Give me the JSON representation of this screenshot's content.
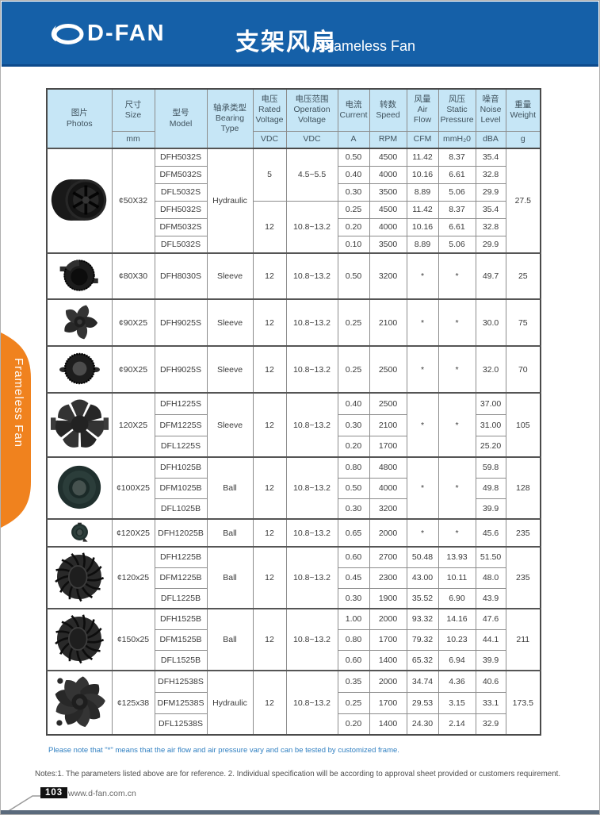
{
  "header_bar": {
    "logo": "D-FAN",
    "title_cn": "支架风扇",
    "title_en": "Frameless Fan"
  },
  "side_tab": {
    "label": "Frameless Fan"
  },
  "colors": {
    "banner_blue": "#1560a8",
    "banner_edge": "#0d4a8c",
    "header_cell_blue": "#c6e6f6",
    "tab_orange": "#f0821e",
    "note_blue": "#2f7fc1"
  },
  "table": {
    "headers": {
      "photos": {
        "cn": "图片",
        "en": "Photos"
      },
      "size": {
        "cn": "尺寸",
        "en": "Size",
        "unit": "mm"
      },
      "model": {
        "cn": "型号",
        "en": "Model"
      },
      "bearing": {
        "cn": "轴承类型",
        "en": "Bearing Type"
      },
      "voltage": {
        "cn": "电压",
        "en": "Rated Voltage",
        "unit": "VDC"
      },
      "op_voltage": {
        "cn": "电压范围",
        "en": "Operation Voltage",
        "unit": "VDC"
      },
      "current": {
        "cn": "电流",
        "en": "Current",
        "unit": "A"
      },
      "speed": {
        "cn": "转数",
        "en": "Speed",
        "unit": "RPM"
      },
      "air_flow": {
        "cn": "风量",
        "en": "Air Flow",
        "unit": "CFM"
      },
      "pressure": {
        "cn": "风压",
        "en": "Static Pressure",
        "unit": "mmH₂0"
      },
      "noise": {
        "cn": "噪音",
        "en": "Noise Level",
        "unit": "dBA"
      },
      "weight": {
        "cn": "重量",
        "en": "Weight",
        "unit": "g"
      }
    },
    "blocks": [
      {
        "photo": "cylinder-impeller-fan",
        "size": "¢50X32",
        "bearing": "Hydraulic",
        "weight": "27.5",
        "groups": [
          {
            "voltage": "5",
            "op_voltage": "4.5~5.5",
            "rows": [
              {
                "model": "DFH5032S",
                "current": "0.50",
                "speed": "4500",
                "air": "11.42",
                "pressure": "8.37",
                "noise": "35.4"
              },
              {
                "model": "DFM5032S",
                "current": "0.40",
                "speed": "4000",
                "air": "10.16",
                "pressure": "6.61",
                "noise": "32.8"
              },
              {
                "model": "DFL5032S",
                "current": "0.30",
                "speed": "3500",
                "air": "8.89",
                "pressure": "5.06",
                "noise": "29.9"
              }
            ]
          },
          {
            "voltage": "12",
            "op_voltage": "10.8~13.2",
            "rows": [
              {
                "model": "DFH5032S",
                "current": "0.25",
                "speed": "4500",
                "air": "11.42",
                "pressure": "8.37",
                "noise": "35.4"
              },
              {
                "model": "DFM5032S",
                "current": "0.20",
                "speed": "4000",
                "air": "10.16",
                "pressure": "6.61",
                "noise": "32.8"
              },
              {
                "model": "DFL5032S",
                "current": "0.10",
                "speed": "3500",
                "air": "8.89",
                "pressure": "5.06",
                "noise": "29.9"
              }
            ]
          }
        ]
      },
      {
        "photo": "round-blower-fan",
        "size": "¢80X30",
        "bearing": "Sleeve",
        "weight": "25",
        "groups": [
          {
            "voltage": "12",
            "op_voltage": "10.8~13.2",
            "rows": [
              {
                "model": "DFH8030S",
                "current": "0.50",
                "speed": "3200",
                "air": "*",
                "pressure": "*",
                "noise": "49.7"
              }
            ]
          }
        ]
      },
      {
        "photo": "swirl-blade-fan",
        "size": "¢90X25",
        "bearing": "Sleeve",
        "weight": "75",
        "groups": [
          {
            "voltage": "12",
            "op_voltage": "10.8~13.2",
            "rows": [
              {
                "model": "DFH9025S",
                "current": "0.25",
                "speed": "2100",
                "air": "*",
                "pressure": "*",
                "noise": "30.0"
              }
            ]
          }
        ]
      },
      {
        "photo": "serrated-round-fan",
        "size": "¢90X25",
        "bearing": "Sleeve",
        "weight": "70",
        "groups": [
          {
            "voltage": "12",
            "op_voltage": "10.8~13.2",
            "rows": [
              {
                "model": "DFH9025S",
                "current": "0.25",
                "speed": "2500",
                "air": "*",
                "pressure": "*",
                "noise": "32.0"
              }
            ]
          }
        ]
      },
      {
        "photo": "seven-blade-axial-fan",
        "size": "120X25",
        "bearing": "Sleeve",
        "weight": "105",
        "air": "*",
        "pressure": "*",
        "groups": [
          {
            "voltage": "12",
            "op_voltage": "10.8~13.2",
            "rows": [
              {
                "model": "DFH1225S",
                "current": "0.40",
                "speed": "2500",
                "noise": "37.00"
              },
              {
                "model": "DFM1225S",
                "current": "0.30",
                "speed": "2100",
                "noise": "31.00"
              },
              {
                "model": "DFL1225S",
                "current": "0.20",
                "speed": "1700",
                "noise": "25.20"
              }
            ]
          }
        ]
      },
      {
        "photo": "dome-round-fan",
        "size": "¢100X25",
        "bearing": "Ball",
        "weight": "128",
        "air": "*",
        "pressure": "*",
        "groups": [
          {
            "voltage": "12",
            "op_voltage": "10.8~13.2",
            "rows": [
              {
                "model": "DFH1025B",
                "current": "0.80",
                "speed": "4800",
                "noise": "59.8"
              },
              {
                "model": "DFM1025B",
                "current": "0.50",
                "speed": "4000",
                "noise": "49.8"
              },
              {
                "model": "DFL1025B",
                "current": "0.30",
                "speed": "3200",
                "noise": "39.9"
              }
            ]
          }
        ]
      },
      {
        "photo": "dome-round-fan-bracket",
        "size": "¢120X25",
        "bearing": "Ball",
        "weight": "235",
        "groups": [
          {
            "voltage": "12",
            "op_voltage": "10.8~13.2",
            "rows": [
              {
                "model": "DFH12025B",
                "current": "0.65",
                "speed": "2000",
                "air": "*",
                "pressure": "*",
                "noise": "45.6"
              }
            ]
          }
        ]
      },
      {
        "photo": "centrifugal-impeller-fan",
        "size": "¢120x25",
        "bearing": "Ball",
        "weight": "235",
        "groups": [
          {
            "voltage": "12",
            "op_voltage": "10.8~13.2",
            "rows": [
              {
                "model": "DFH1225B",
                "current": "0.60",
                "speed": "2700",
                "air": "50.48",
                "pressure": "13.93",
                "noise": "51.50"
              },
              {
                "model": "DFM1225B",
                "current": "0.45",
                "speed": "2300",
                "air": "43.00",
                "pressure": "10.11",
                "noise": "48.0"
              },
              {
                "model": "DFL1225B",
                "current": "0.30",
                "speed": "1900",
                "air": "35.52",
                "pressure": "6.90",
                "noise": "43.9"
              }
            ]
          }
        ]
      },
      {
        "photo": "centrifugal-impeller-fan",
        "size": "¢150x25",
        "bearing": "Ball",
        "weight": "211",
        "groups": [
          {
            "voltage": "12",
            "op_voltage": "10.8~13.2",
            "rows": [
              {
                "model": "DFH1525B",
                "current": "1.00",
                "speed": "2000",
                "air": "93.32",
                "pressure": "14.16",
                "noise": "47.6"
              },
              {
                "model": "DFM1525B",
                "current": "0.80",
                "speed": "1700",
                "air": "79.32",
                "pressure": "10.23",
                "noise": "44.1"
              },
              {
                "model": "DFL1525B",
                "current": "0.60",
                "speed": "1400",
                "air": "65.32",
                "pressure": "6.94",
                "noise": "39.9"
              }
            ]
          }
        ]
      },
      {
        "photo": "nine-blade-swirl-fan",
        "size": "¢125x38",
        "bearing": "Hydraulic",
        "weight": "173.5",
        "groups": [
          {
            "voltage": "12",
            "op_voltage": "10.8~13.2",
            "rows": [
              {
                "model": "DFH12538S",
                "current": "0.35",
                "speed": "2000",
                "air": "34.74",
                "pressure": "4.36",
                "noise": "40.6"
              },
              {
                "model": "DFM12538S",
                "current": "0.25",
                "speed": "1700",
                "air": "29.53",
                "pressure": "3.15",
                "noise": "33.1"
              },
              {
                "model": "DFL12538S",
                "current": "0.20",
                "speed": "1400",
                "air": "24.30",
                "pressure": "2.14",
                "noise": "32.9"
              }
            ]
          }
        ]
      }
    ]
  },
  "notes": {
    "star_note": "Please note that  \"*\"  means that the air flow and air pressure vary and can be tested by customized frame.",
    "notes_line": "Notes:1. The parameters listed above are for reference.   2. Individual specification will be according to approval sheet provided or customers requirement."
  },
  "footer": {
    "page_number": "103",
    "url": "www.d-fan.com.cn"
  }
}
